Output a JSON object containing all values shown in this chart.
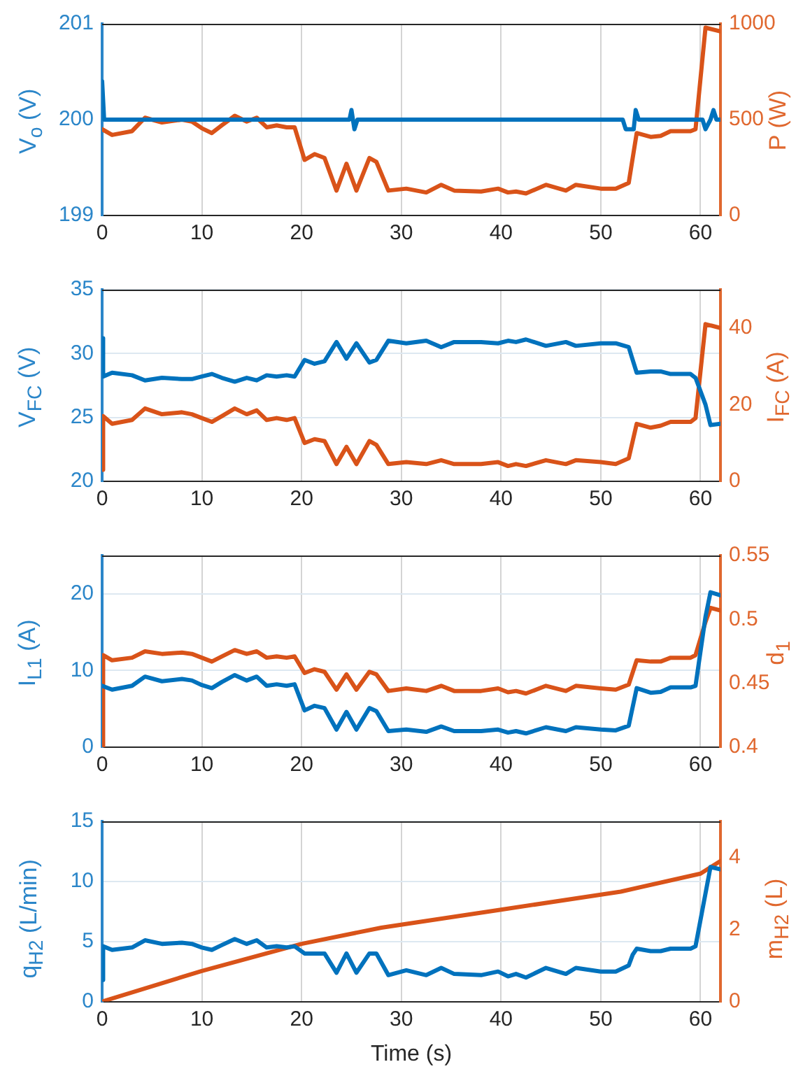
{
  "chart_data": [
    {
      "type": "line",
      "ylabel": "V$_{o}$ (V)",
      "y2label": "P  (W)",
      "xlim": [
        0,
        62
      ],
      "xticks": [
        0,
        10,
        20,
        30,
        40,
        50,
        60
      ],
      "ylim": [
        199,
        201
      ],
      "yticks": [
        199,
        200,
        201
      ],
      "y2lim": [
        0,
        1000
      ],
      "y2ticks": [
        0,
        500,
        1000
      ],
      "grid": "x",
      "series": [
        {
          "color": "#0072bd",
          "x": [
            0,
            0.2,
            20,
            24.8,
            25,
            25.3,
            25.6,
            52.2,
            52.5,
            53.3,
            53.5,
            53.8,
            60.2,
            60.5,
            61,
            61.3,
            61.6,
            62
          ],
          "values": [
            200.4,
            200,
            200,
            200,
            200.1,
            199.9,
            200,
            200,
            199.9,
            199.9,
            200.1,
            200,
            200,
            199.9,
            200,
            200.1,
            200,
            200
          ]
        },
        {
          "color": "#d95319",
          "axis": "y2",
          "x": [
            0,
            1,
            3,
            4.3,
            6,
            8,
            9,
            10,
            11,
            12,
            13.3,
            14.5,
            15.5,
            16.5,
            17.5,
            18.5,
            19.3,
            20.3,
            21.3,
            22.3,
            23.5,
            24.5,
            25.5,
            26.8,
            27.5,
            28.7,
            30.5,
            32.5,
            34,
            35.3,
            38,
            39.7,
            40.7,
            41.5,
            42.5,
            44.5,
            46.5,
            47.5,
            50,
            51.5,
            52.8,
            53.6,
            55,
            56,
            57,
            59,
            59.5,
            60.5,
            62
          ],
          "values": [
            450,
            420,
            440,
            510,
            485,
            500,
            490,
            455,
            430,
            470,
            520,
            490,
            510,
            460,
            470,
            460,
            460,
            290,
            320,
            300,
            130,
            270,
            130,
            300,
            280,
            130,
            140,
            120,
            160,
            130,
            125,
            140,
            120,
            125,
            115,
            160,
            130,
            160,
            140,
            140,
            170,
            430,
            410,
            415,
            440,
            440,
            450,
            980,
            960
          ]
        }
      ]
    },
    {
      "type": "line",
      "ylabel": "V$_{FC}$ (V)",
      "y2label": "I$_{FC}$ (A)",
      "xlim": [
        0,
        62
      ],
      "xticks": [
        0,
        10,
        20,
        30,
        40,
        50,
        60
      ],
      "ylim": [
        20,
        35
      ],
      "yticks": [
        20,
        25,
        30,
        35
      ],
      "y2lim": [
        0,
        50
      ],
      "y2ticks": [
        0,
        20,
        40
      ],
      "grid": true,
      "series": [
        {
          "color": "#0072bd",
          "x": [
            0,
            0.1,
            1,
            3,
            4.3,
            6,
            8,
            9,
            10,
            11,
            12,
            13.3,
            14.5,
            15.5,
            16.5,
            17.5,
            18.5,
            19.3,
            20.3,
            21.3,
            22.3,
            23.5,
            24.5,
            25.5,
            26.8,
            27.5,
            28.7,
            30.5,
            32.5,
            34,
            35.3,
            38,
            39.7,
            40.7,
            41.5,
            42.5,
            44.5,
            46.5,
            47.5,
            50,
            51.5,
            52.8,
            53.6,
            55,
            56,
            57,
            59,
            59.5,
            60.5,
            61,
            62
          ],
          "values": [
            31.2,
            28.2,
            28.5,
            28.3,
            27.9,
            28.1,
            28,
            28,
            28.2,
            28.4,
            28.1,
            27.8,
            28.1,
            27.9,
            28.3,
            28.2,
            28.3,
            28.2,
            29.5,
            29.2,
            29.4,
            30.9,
            29.6,
            30.8,
            29.3,
            29.5,
            31,
            30.8,
            31,
            30.5,
            30.9,
            30.9,
            30.8,
            31,
            30.9,
            31.1,
            30.6,
            30.9,
            30.6,
            30.8,
            30.8,
            30.5,
            28.5,
            28.6,
            28.6,
            28.4,
            28.4,
            28.1,
            26,
            24.4,
            24.5
          ]
        },
        {
          "color": "#d95319",
          "axis": "y2",
          "x": [
            0,
            0.1,
            1,
            3,
            4.3,
            6,
            8,
            9,
            10,
            11,
            12,
            13.3,
            14.5,
            15.5,
            16.5,
            17.5,
            18.5,
            19.3,
            20.3,
            21.3,
            22.3,
            23.5,
            24.5,
            25.5,
            26.8,
            27.5,
            28.7,
            30.5,
            32.5,
            34,
            35.3,
            38,
            39.7,
            40.7,
            41.5,
            42.5,
            44.5,
            46.5,
            47.5,
            50,
            51.5,
            52.8,
            53.6,
            55,
            56,
            57,
            59,
            59.5,
            60.5,
            62
          ],
          "values": [
            3,
            17,
            15,
            16,
            19,
            17.5,
            18,
            17.5,
            16.5,
            15.5,
            17,
            19,
            17.5,
            18.5,
            16,
            16.5,
            16,
            16.5,
            10,
            11,
            10.5,
            4.5,
            9,
            4.5,
            10.5,
            9.5,
            4.5,
            5,
            4.5,
            5.5,
            4.5,
            4.5,
            5,
            4,
            4.5,
            4,
            5.5,
            4.5,
            5.5,
            5,
            4.5,
            6,
            15,
            14,
            14.5,
            15.5,
            15.5,
            16.5,
            41,
            40
          ]
        }
      ]
    },
    {
      "type": "line",
      "ylabel": "I$_{L1}$ (A)",
      "y2label": "d$_{1}$",
      "xlim": [
        0,
        62
      ],
      "xticks": [
        0,
        10,
        20,
        30,
        40,
        50,
        60
      ],
      "ylim": [
        0,
        25
      ],
      "yticks": [
        0,
        10,
        20
      ],
      "y2lim": [
        0.4,
        0.55
      ],
      "y2ticks": [
        0.4,
        0.45,
        0.5,
        0.55
      ],
      "grid": true,
      "series": [
        {
          "color": "#0072bd",
          "x": [
            0,
            1,
            3,
            4.3,
            6,
            8,
            9,
            10,
            11,
            12,
            13.3,
            14.5,
            15.5,
            16.5,
            17.5,
            18.5,
            19.3,
            20.3,
            21.3,
            22.3,
            23.5,
            24.5,
            25.5,
            26.8,
            27.5,
            28.7,
            30.5,
            32.5,
            34,
            35.3,
            38,
            39.7,
            40.7,
            41.5,
            42.5,
            44.5,
            46.5,
            47.5,
            50,
            51.5,
            52.8,
            53.6,
            55,
            56,
            57,
            59,
            59.5,
            60.5,
            61,
            62
          ],
          "values": [
            8,
            7.5,
            8,
            9.2,
            8.6,
            8.9,
            8.7,
            8.1,
            7.7,
            8.5,
            9.4,
            8.7,
            9.2,
            8,
            8.2,
            8,
            8.2,
            4.8,
            5.4,
            5.1,
            2.3,
            4.6,
            2.3,
            5.1,
            4.7,
            2.1,
            2.3,
            2,
            2.7,
            2.1,
            2.1,
            2.3,
            1.9,
            2.1,
            1.8,
            2.6,
            2.1,
            2.6,
            2.3,
            2.2,
            2.8,
            7.7,
            7.1,
            7.2,
            7.8,
            7.8,
            8,
            17,
            20.2,
            19.8
          ]
        },
        {
          "color": "#d95319",
          "axis": "y2",
          "x": [
            0,
            0.1,
            1,
            3,
            4.3,
            6,
            8,
            9,
            10,
            11,
            12,
            13.3,
            14.5,
            15.5,
            16.5,
            17.5,
            18.5,
            19.3,
            20.3,
            21.3,
            22.3,
            23.5,
            24.5,
            25.5,
            26.8,
            27.5,
            28.7,
            30.5,
            32.5,
            34,
            35.3,
            38,
            39.7,
            40.7,
            41.5,
            42.5,
            44.5,
            46.5,
            47.5,
            50,
            51.5,
            52.8,
            53.6,
            55,
            56,
            57,
            59,
            59.5,
            60.5,
            61,
            62
          ],
          "values": [
            0.4,
            0.472,
            0.468,
            0.47,
            0.475,
            0.473,
            0.474,
            0.473,
            0.47,
            0.467,
            0.471,
            0.476,
            0.473,
            0.475,
            0.47,
            0.471,
            0.47,
            0.471,
            0.458,
            0.461,
            0.459,
            0.445,
            0.457,
            0.445,
            0.459,
            0.457,
            0.444,
            0.446,
            0.444,
            0.448,
            0.444,
            0.444,
            0.446,
            0.443,
            0.444,
            0.442,
            0.448,
            0.444,
            0.448,
            0.446,
            0.445,
            0.449,
            0.468,
            0.467,
            0.467,
            0.47,
            0.47,
            0.472,
            0.498,
            0.509,
            0.507
          ]
        }
      ]
    },
    {
      "type": "line",
      "ylabel": "q$_{H2}$ (L/min)",
      "y2label": "m$_{H2}$ (L)",
      "xlabel": "Time (s)",
      "xlim": [
        0,
        62
      ],
      "xticks": [
        0,
        10,
        20,
        30,
        40,
        50,
        60
      ],
      "ylim": [
        0,
        15
      ],
      "yticks": [
        0,
        5,
        10,
        15
      ],
      "y2lim": [
        0,
        5
      ],
      "y2ticks": [
        0,
        2,
        4
      ],
      "grid": true,
      "series": [
        {
          "color": "#0072bd",
          "x": [
            0,
            0.1,
            1,
            3,
            4.3,
            6,
            8,
            9,
            10,
            11,
            12,
            13.3,
            14.5,
            15.5,
            16.5,
            17.5,
            18.5,
            19.3,
            20.3,
            22.3,
            23.5,
            24.5,
            25.5,
            26.8,
            27.5,
            28.7,
            30.5,
            32.5,
            34,
            35.3,
            38,
            39.7,
            40.7,
            41.5,
            42.5,
            44.5,
            46.5,
            47.5,
            50,
            51.5,
            52.8,
            53.2,
            53.6,
            55,
            56,
            57,
            59,
            59.5,
            60.5,
            61,
            62
          ],
          "values": [
            1.8,
            4.6,
            4.3,
            4.5,
            5.1,
            4.8,
            4.9,
            4.8,
            4.5,
            4.3,
            4.7,
            5.2,
            4.8,
            5.1,
            4.5,
            4.6,
            4.5,
            4.6,
            4,
            4,
            2.4,
            4,
            2.4,
            4,
            4,
            2.2,
            2.6,
            2.2,
            2.8,
            2.3,
            2.2,
            2.5,
            2.1,
            2.3,
            2,
            2.8,
            2.3,
            2.8,
            2.5,
            2.5,
            3,
            3.9,
            4.4,
            4.2,
            4.2,
            4.4,
            4.4,
            4.6,
            9,
            11.2,
            11
          ]
        },
        {
          "color": "#d95319",
          "axis": "y2",
          "x": [
            0,
            10,
            20,
            28,
            40,
            52,
            60,
            62
          ],
          "values": [
            0,
            0.85,
            1.6,
            2.05,
            2.55,
            3.05,
            3.55,
            3.9
          ]
        }
      ]
    }
  ]
}
